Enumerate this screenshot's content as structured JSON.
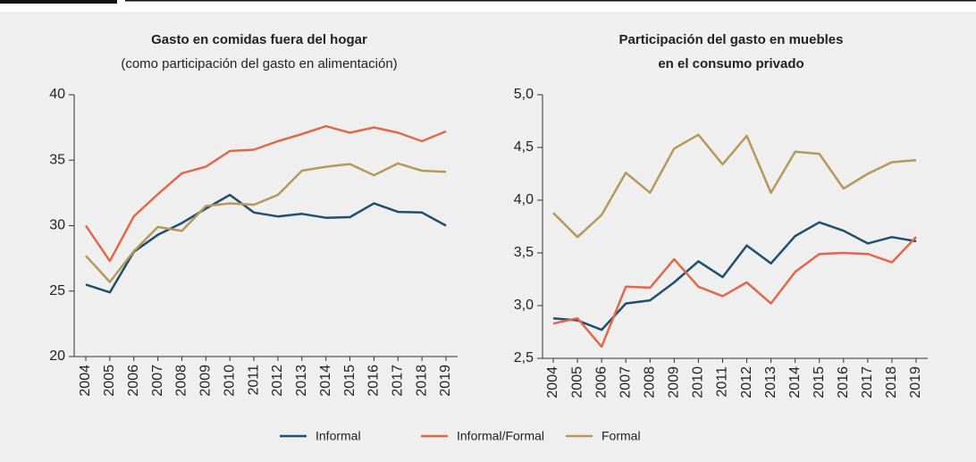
{
  "chart_data": [
    {
      "type": "line",
      "title": "Gasto en comidas fuera del hogar",
      "subtitle": "(como participación del gasto en alimentación)",
      "categories": [
        "2004",
        "2005",
        "2006",
        "2007",
        "2008",
        "2009",
        "2010",
        "2011",
        "2012",
        "2013",
        "2014",
        "2015",
        "2016",
        "2017",
        "2018",
        "2019"
      ],
      "series": [
        {
          "name": "Informal",
          "color": "#1f4e6e",
          "values": [
            25.5,
            24.9,
            28.0,
            29.3,
            30.2,
            31.3,
            32.35,
            31.0,
            30.7,
            30.9,
            30.6,
            30.65,
            31.7,
            31.05,
            31.0,
            30.0
          ]
        },
        {
          "name": "Informal/Formal",
          "color": "#e0694a",
          "values": [
            30.0,
            27.3,
            30.7,
            32.4,
            34.0,
            34.5,
            35.7,
            35.8,
            36.45,
            37.0,
            37.6,
            37.1,
            37.5,
            37.1,
            36.45,
            37.2
          ]
        },
        {
          "name": "Formal",
          "color": "#b5985a",
          "values": [
            27.7,
            25.7,
            28.05,
            29.9,
            29.6,
            31.5,
            31.7,
            31.6,
            32.35,
            34.2,
            34.5,
            34.7,
            33.85,
            34.75,
            34.2,
            34.1
          ]
        }
      ],
      "ylim": [
        20,
        40
      ],
      "yticks": [
        20,
        25,
        30,
        35,
        40
      ]
    },
    {
      "type": "line",
      "title": [
        "Participación del gasto en muebles",
        "en el consumo privado"
      ],
      "categories": [
        "2004",
        "2005",
        "2006",
        "2007",
        "2008",
        "2009",
        "2010",
        "2011",
        "2012",
        "2013",
        "2014",
        "2015",
        "2016",
        "2017",
        "2018",
        "2019"
      ],
      "series": [
        {
          "name": "Informal",
          "color": "#1f4e6e",
          "values": [
            2.88,
            2.86,
            2.77,
            3.02,
            3.05,
            3.22,
            3.42,
            3.27,
            3.57,
            3.4,
            3.66,
            3.79,
            3.71,
            3.59,
            3.65,
            3.61
          ]
        },
        {
          "name": "Informal/Formal",
          "color": "#e0694a",
          "values": [
            2.83,
            2.88,
            2.61,
            3.18,
            3.17,
            3.44,
            3.18,
            3.09,
            3.22,
            3.02,
            3.32,
            3.49,
            3.5,
            3.49,
            3.41,
            3.65
          ]
        },
        {
          "name": "Formal",
          "color": "#b5985a",
          "values": [
            3.88,
            3.65,
            3.86,
            4.26,
            4.07,
            4.49,
            4.62,
            4.34,
            4.61,
            4.07,
            4.46,
            4.44,
            4.11,
            4.25,
            4.36,
            4.38
          ]
        }
      ],
      "ylim": [
        2.5,
        5.0
      ],
      "yticks": [
        {
          "value": 2.5,
          "label": "2,5"
        },
        {
          "value": 3.0,
          "label": "3,0"
        },
        {
          "value": 3.5,
          "label": "3,5"
        },
        {
          "value": 4.0,
          "label": "4,0"
        },
        {
          "value": 4.5,
          "label": "4,5"
        },
        {
          "value": 5.0,
          "label": "5,0"
        }
      ]
    }
  ]
}
